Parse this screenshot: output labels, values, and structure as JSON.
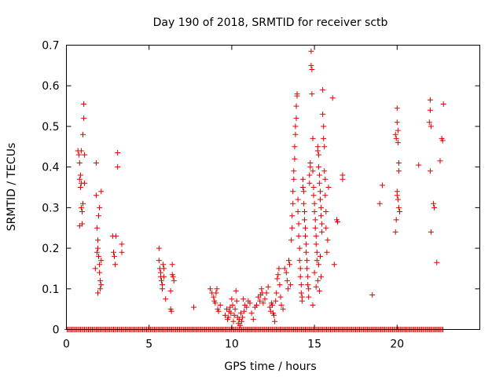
{
  "chart_data": {
    "type": "scatter",
    "title": "Day 190 of 2018, SRMTID for receiver sctb",
    "xlabel": "GPS time / hours",
    "ylabel": "SRMTID / TECUs",
    "xlim": [
      0,
      25
    ],
    "ylim": [
      0,
      0.7
    ],
    "xticks": [
      0,
      5,
      10,
      15,
      20
    ],
    "xtick_labels": [
      "0",
      "5",
      "10",
      "15",
      "20"
    ],
    "yticks": [
      0,
      0.1,
      0.2,
      0.3,
      0.4,
      0.5,
      0.6,
      0.7
    ],
    "ytick_labels": [
      "0",
      "0.1",
      "0.2",
      "0.3",
      "0.4",
      "0.5",
      "0.6",
      "0.7"
    ],
    "grid": false,
    "marker": "+",
    "color": "#e00000",
    "baseline": {
      "y": 0,
      "x_start": 0.05,
      "x_end": 22.8,
      "step": 0.08
    },
    "series": [
      {
        "name": "SRMTID",
        "points": [
          [
            0.7,
            0.44
          ],
          [
            0.75,
            0.43
          ],
          [
            0.8,
            0.41
          ],
          [
            0.8,
            0.37
          ],
          [
            0.85,
            0.38
          ],
          [
            0.85,
            0.35
          ],
          [
            0.9,
            0.36
          ],
          [
            0.9,
            0.3
          ],
          [
            0.95,
            0.29
          ],
          [
            0.95,
            0.26
          ],
          [
            0.8,
            0.255
          ],
          [
            1.0,
            0.31
          ],
          [
            1.0,
            0.48
          ],
          [
            1.05,
            0.52
          ],
          [
            1.05,
            0.555
          ],
          [
            1.1,
            0.43
          ],
          [
            1.1,
            0.36
          ],
          [
            0.9,
            0.44
          ],
          [
            1.8,
            0.41
          ],
          [
            1.8,
            0.33
          ],
          [
            1.85,
            0.25
          ],
          [
            1.9,
            0.22
          ],
          [
            1.9,
            0.2
          ],
          [
            1.95,
            0.18
          ],
          [
            2.0,
            0.16
          ],
          [
            2.0,
            0.14
          ],
          [
            2.05,
            0.12
          ],
          [
            2.05,
            0.1
          ],
          [
            2.1,
            0.17
          ],
          [
            2.1,
            0.34
          ],
          [
            2.0,
            0.3
          ],
          [
            1.95,
            0.28
          ],
          [
            1.85,
            0.19
          ],
          [
            1.75,
            0.15
          ],
          [
            2.1,
            0.11
          ],
          [
            1.9,
            0.09
          ],
          [
            2.8,
            0.23
          ],
          [
            2.85,
            0.19
          ],
          [
            2.9,
            0.18
          ],
          [
            2.95,
            0.16
          ],
          [
            3.0,
            0.23
          ],
          [
            3.1,
            0.435
          ],
          [
            3.1,
            0.4
          ],
          [
            3.35,
            0.21
          ],
          [
            3.35,
            0.19
          ],
          [
            5.6,
            0.2
          ],
          [
            5.6,
            0.17
          ],
          [
            5.65,
            0.15
          ],
          [
            5.7,
            0.14
          ],
          [
            5.7,
            0.13
          ],
          [
            5.75,
            0.12
          ],
          [
            5.8,
            0.11
          ],
          [
            5.8,
            0.1
          ],
          [
            5.85,
            0.16
          ],
          [
            5.9,
            0.15
          ],
          [
            5.9,
            0.13
          ],
          [
            6.0,
            0.075
          ],
          [
            6.3,
            0.05
          ],
          [
            6.35,
            0.045
          ],
          [
            6.4,
            0.16
          ],
          [
            6.4,
            0.135
          ],
          [
            6.45,
            0.13
          ],
          [
            6.5,
            0.12
          ],
          [
            6.3,
            0.095
          ],
          [
            7.7,
            0.055
          ],
          [
            8.7,
            0.1
          ],
          [
            8.8,
            0.09
          ],
          [
            8.9,
            0.08
          ],
          [
            8.95,
            0.07
          ],
          [
            9.0,
            0.065
          ],
          [
            9.05,
            0.09
          ],
          [
            9.1,
            0.1
          ],
          [
            9.15,
            0.05
          ],
          [
            9.2,
            0.045
          ],
          [
            9.3,
            0.06
          ],
          [
            9.6,
            0.035
          ],
          [
            9.7,
            0.05
          ],
          [
            9.75,
            0.025
          ],
          [
            9.8,
            0.03
          ],
          [
            9.85,
            0.045
          ],
          [
            9.9,
            0.055
          ],
          [
            9.95,
            0.04
          ],
          [
            10.0,
            0.075
          ],
          [
            10.05,
            0.06
          ],
          [
            10.1,
            0.02
          ],
          [
            10.15,
            0.035
          ],
          [
            10.2,
            0.05
          ],
          [
            10.25,
            0.095
          ],
          [
            10.3,
            0.07
          ],
          [
            10.35,
            0.03
          ],
          [
            10.4,
            0.015
          ],
          [
            10.45,
            0.025
          ],
          [
            10.5,
            0.01
          ],
          [
            10.55,
            0.04
          ],
          [
            10.6,
            0.02
          ],
          [
            10.65,
            0.03
          ],
          [
            10.7,
            0.075
          ],
          [
            10.75,
            0.045
          ],
          [
            10.8,
            0.06
          ],
          [
            10.9,
            0.055
          ],
          [
            11.0,
            0.07
          ],
          [
            11.1,
            0.065
          ],
          [
            11.2,
            0.04
          ],
          [
            11.3,
            0.025
          ],
          [
            11.4,
            0.055
          ],
          [
            11.5,
            0.06
          ],
          [
            11.6,
            0.08
          ],
          [
            11.7,
            0.07
          ],
          [
            11.75,
            0.085
          ],
          [
            11.8,
            0.1
          ],
          [
            11.85,
            0.09
          ],
          [
            11.9,
            0.065
          ],
          [
            12.0,
            0.075
          ],
          [
            12.1,
            0.09
          ],
          [
            12.2,
            0.105
          ],
          [
            12.3,
            0.055
          ],
          [
            12.35,
            0.045
          ],
          [
            12.4,
            0.065
          ],
          [
            12.45,
            0.06
          ],
          [
            12.5,
            0.04
          ],
          [
            12.55,
            0.035
          ],
          [
            12.6,
            0.02
          ],
          [
            12.65,
            0.07
          ],
          [
            12.7,
            0.09
          ],
          [
            12.75,
            0.125
          ],
          [
            12.8,
            0.135
          ],
          [
            12.85,
            0.15
          ],
          [
            12.9,
            0.11
          ],
          [
            12.95,
            0.08
          ],
          [
            13.0,
            0.06
          ],
          [
            13.1,
            0.05
          ],
          [
            13.2,
            0.15
          ],
          [
            13.3,
            0.14
          ],
          [
            13.35,
            0.12
          ],
          [
            13.4,
            0.1
          ],
          [
            13.45,
            0.17
          ],
          [
            13.5,
            0.16
          ],
          [
            13.55,
            0.11
          ],
          [
            13.6,
            0.22
          ],
          [
            13.65,
            0.25
          ],
          [
            13.65,
            0.28
          ],
          [
            13.7,
            0.31
          ],
          [
            13.7,
            0.34
          ],
          [
            13.75,
            0.37
          ],
          [
            13.75,
            0.39
          ],
          [
            13.8,
            0.42
          ],
          [
            13.8,
            0.45
          ],
          [
            13.85,
            0.48
          ],
          [
            13.85,
            0.5
          ],
          [
            13.9,
            0.52
          ],
          [
            13.9,
            0.55
          ],
          [
            13.95,
            0.58
          ],
          [
            13.95,
            0.575
          ],
          [
            14.0,
            0.32
          ],
          [
            14.0,
            0.29
          ],
          [
            14.05,
            0.26
          ],
          [
            14.05,
            0.23
          ],
          [
            14.1,
            0.2
          ],
          [
            14.1,
            0.17
          ],
          [
            14.15,
            0.15
          ],
          [
            14.15,
            0.13
          ],
          [
            14.2,
            0.11
          ],
          [
            14.2,
            0.09
          ],
          [
            14.25,
            0.08
          ],
          [
            14.25,
            0.07
          ],
          [
            14.3,
            0.37
          ],
          [
            14.3,
            0.35
          ],
          [
            14.35,
            0.34
          ],
          [
            14.35,
            0.31
          ],
          [
            14.4,
            0.29
          ],
          [
            14.4,
            0.27
          ],
          [
            14.45,
            0.25
          ],
          [
            14.45,
            0.23
          ],
          [
            14.5,
            0.21
          ],
          [
            14.5,
            0.19
          ],
          [
            14.55,
            0.17
          ],
          [
            14.55,
            0.15
          ],
          [
            14.6,
            0.13
          ],
          [
            14.6,
            0.11
          ],
          [
            14.65,
            0.1
          ],
          [
            14.65,
            0.08
          ],
          [
            14.7,
            0.38
          ],
          [
            14.7,
            0.36
          ],
          [
            14.75,
            0.41
          ],
          [
            14.75,
            0.4
          ],
          [
            14.8,
            0.685
          ],
          [
            14.8,
            0.65
          ],
          [
            14.85,
            0.64
          ],
          [
            14.85,
            0.58
          ],
          [
            14.9,
            0.47
          ],
          [
            14.9,
            0.39
          ],
          [
            14.95,
            0.35
          ],
          [
            14.95,
            0.33
          ],
          [
            15.0,
            0.31
          ],
          [
            15.0,
            0.29
          ],
          [
            15.05,
            0.27
          ],
          [
            15.05,
            0.25
          ],
          [
            15.1,
            0.23
          ],
          [
            15.1,
            0.21
          ],
          [
            15.15,
            0.19
          ],
          [
            15.15,
            0.17
          ],
          [
            15.2,
            0.45
          ],
          [
            15.2,
            0.44
          ],
          [
            15.25,
            0.43
          ],
          [
            15.25,
            0.4
          ],
          [
            15.3,
            0.38
          ],
          [
            15.3,
            0.36
          ],
          [
            15.35,
            0.34
          ],
          [
            15.35,
            0.32
          ],
          [
            15.4,
            0.3
          ],
          [
            15.4,
            0.28
          ],
          [
            15.45,
            0.26
          ],
          [
            15.45,
            0.24
          ],
          [
            15.5,
            0.59
          ],
          [
            15.5,
            0.53
          ],
          [
            15.55,
            0.5
          ],
          [
            15.55,
            0.47
          ],
          [
            15.6,
            0.45
          ],
          [
            15.6,
            0.39
          ],
          [
            15.65,
            0.37
          ],
          [
            15.65,
            0.33
          ],
          [
            15.7,
            0.29
          ],
          [
            15.7,
            0.25
          ],
          [
            15.75,
            0.19
          ],
          [
            15.8,
            0.22
          ],
          [
            15.85,
            0.35
          ],
          [
            15.2,
            0.12
          ],
          [
            15.0,
            0.14
          ],
          [
            15.4,
            0.13
          ],
          [
            15.3,
            0.095
          ],
          [
            15.1,
            0.105
          ],
          [
            14.9,
            0.06
          ],
          [
            15.25,
            0.16
          ],
          [
            15.35,
            0.18
          ],
          [
            16.1,
            0.57
          ],
          [
            16.2,
            0.16
          ],
          [
            16.35,
            0.27
          ],
          [
            16.4,
            0.265
          ],
          [
            16.7,
            0.38
          ],
          [
            16.7,
            0.37
          ],
          [
            18.5,
            0.085
          ],
          [
            18.95,
            0.31
          ],
          [
            19.1,
            0.355
          ],
          [
            19.9,
            0.24
          ],
          [
            19.95,
            0.27
          ],
          [
            19.9,
            0.48
          ],
          [
            19.95,
            0.47
          ],
          [
            20.0,
            0.545
          ],
          [
            20.0,
            0.51
          ],
          [
            20.05,
            0.49
          ],
          [
            20.05,
            0.46
          ],
          [
            20.1,
            0.41
          ],
          [
            20.1,
            0.39
          ],
          [
            20.0,
            0.33
          ],
          [
            20.05,
            0.32
          ],
          [
            20.1,
            0.3
          ],
          [
            20.15,
            0.29
          ],
          [
            20.0,
            0.34
          ],
          [
            21.3,
            0.405
          ],
          [
            22.0,
            0.565
          ],
          [
            22.0,
            0.54
          ],
          [
            21.95,
            0.51
          ],
          [
            22.05,
            0.5
          ],
          [
            22.0,
            0.39
          ],
          [
            22.05,
            0.24
          ],
          [
            22.2,
            0.31
          ],
          [
            22.25,
            0.3
          ],
          [
            22.4,
            0.165
          ],
          [
            22.6,
            0.415
          ],
          [
            22.7,
            0.47
          ],
          [
            22.75,
            0.465
          ],
          [
            22.8,
            0.555
          ]
        ]
      }
    ]
  }
}
